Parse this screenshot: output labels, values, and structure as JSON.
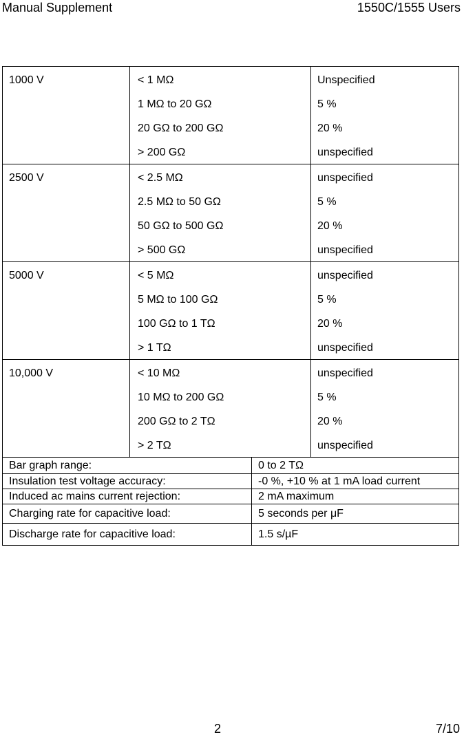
{
  "header": {
    "left_title": "Manual Supplement",
    "right_title": "1550C/1555 Users"
  },
  "spec_table": {
    "rows": [
      {
        "voltage": "1000 V",
        "ranges": [
          "< 1 MΩ",
          "1 MΩ to 20 GΩ",
          "20 GΩ to 200 GΩ",
          "> 200 GΩ"
        ],
        "accuracies": [
          "Unspecified",
          "5 %",
          "20 %",
          "unspecified"
        ]
      },
      {
        "voltage": "2500 V",
        "ranges": [
          "< 2.5 MΩ",
          "2.5 MΩ to 50 GΩ",
          "50 GΩ to 500 GΩ",
          "> 500 GΩ"
        ],
        "accuracies": [
          "unspecified",
          "5 %",
          "20 %",
          "unspecified"
        ]
      },
      {
        "voltage": "5000 V",
        "ranges": [
          "< 5 MΩ",
          "5 MΩ to 100 GΩ",
          "100 GΩ to 1 TΩ",
          "> 1 TΩ"
        ],
        "accuracies": [
          "unspecified",
          "5 %",
          "20 %",
          "unspecified"
        ]
      },
      {
        "voltage": "10,000 V",
        "ranges": [
          "< 10 MΩ",
          "10 MΩ to 200 GΩ",
          "200 GΩ to 2 TΩ",
          "> 2 TΩ"
        ],
        "accuracies": [
          "unspecified",
          "5 %",
          "20 %",
          "unspecified"
        ]
      }
    ]
  },
  "properties_table": {
    "rows": [
      {
        "label": "Bar graph range:",
        "value": "0 to 2 TΩ"
      },
      {
        "label": "Insulation test voltage accuracy:",
        "value": "-0 %, +10 % at 1 mA load current"
      },
      {
        "label": "Induced ac mains current rejection:",
        "value": "2 mA maximum"
      },
      {
        "label": "Charging rate for capacitive load:",
        "value": "5 seconds per μF"
      },
      {
        "label": "Discharge rate for capacitive load:",
        "value": "1.5 s/µF"
      }
    ]
  },
  "footer": {
    "page_number": "2",
    "sheet_number": "7/10"
  }
}
